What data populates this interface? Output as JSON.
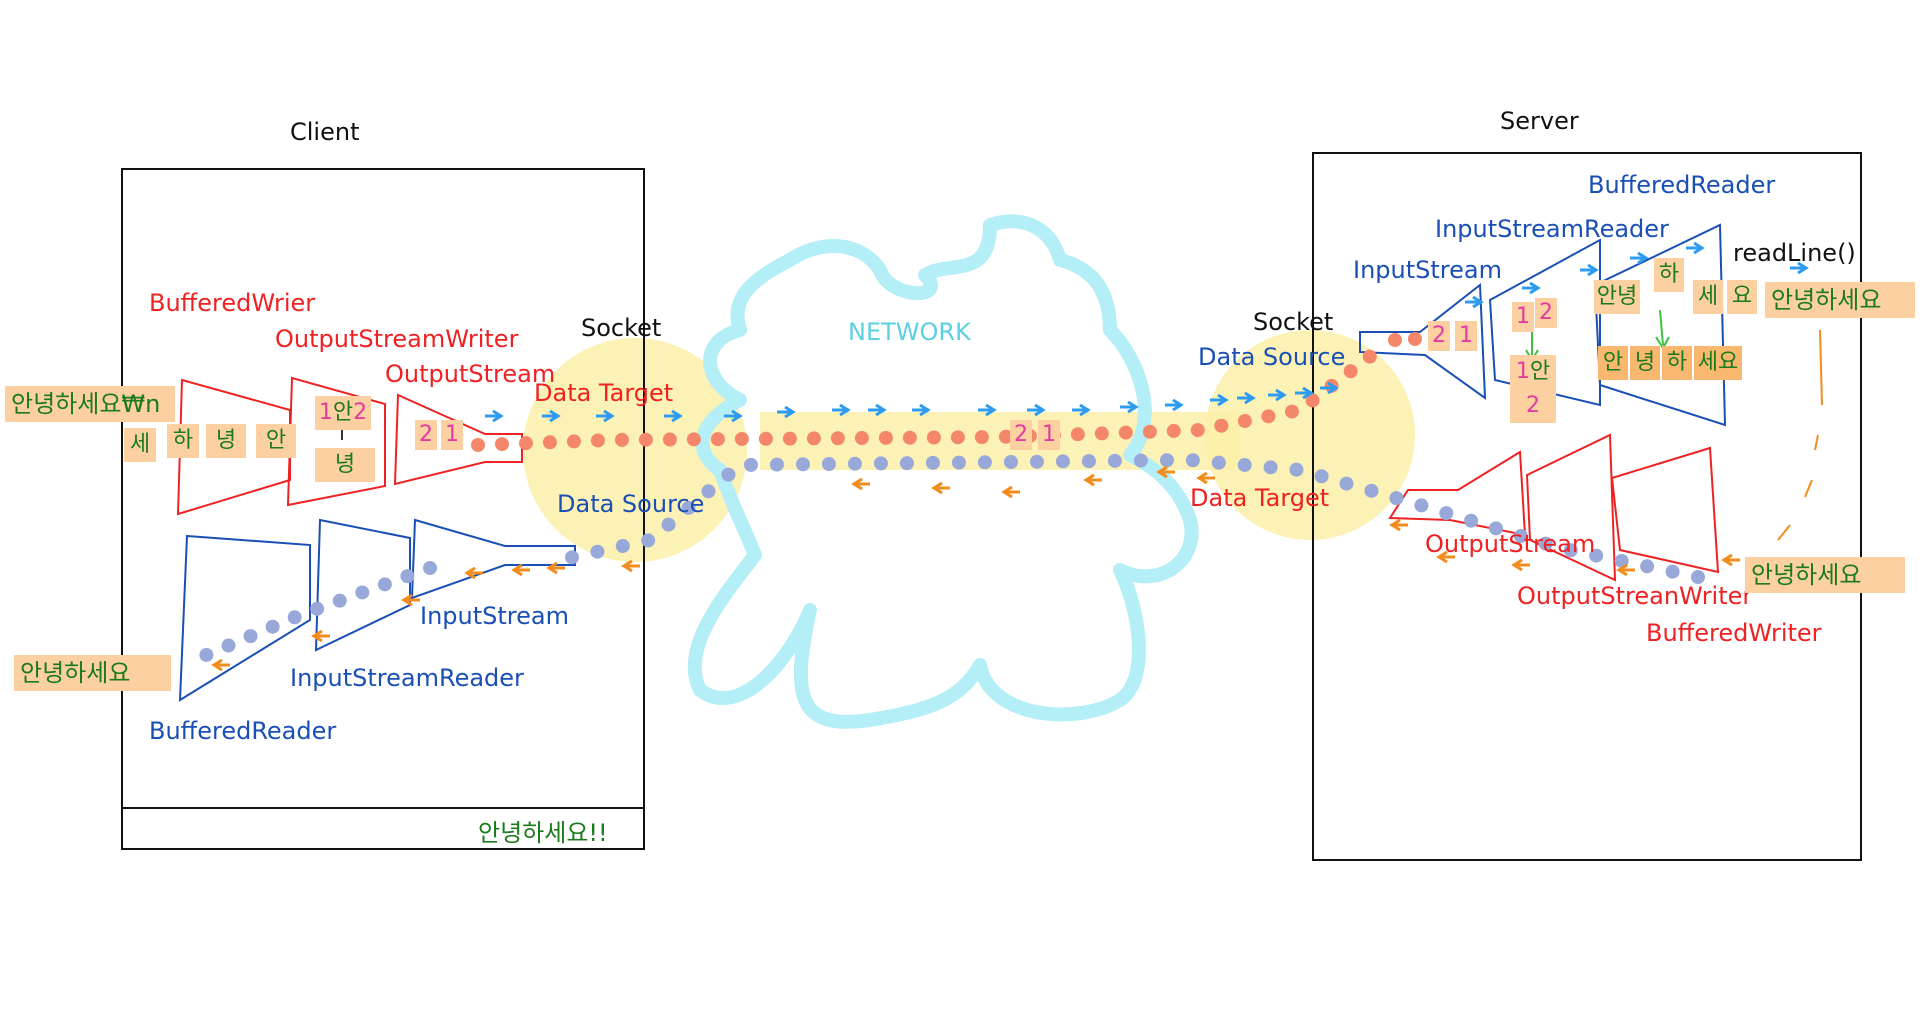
{
  "client": {
    "title": "Client",
    "buffered_writer": "BufferedWrier",
    "output_stream_writer": "OutputStreamWriter",
    "output_stream": "OutputStream",
    "socket": "Socket",
    "data_target": "Data Target",
    "data_source": "Data Source",
    "input_stream": "InputStream",
    "input_stream_reader": "InputStreamReader",
    "buffered_reader": "BufferedReader",
    "input_chip": "안녕하세요₩n",
    "char_se": "세",
    "char_ha": "하",
    "char_nyeong": "녕",
    "char_an": "안",
    "stack_an": "안",
    "stack_nyeong": "녕",
    "num_1": "1",
    "num_2": "2",
    "output_chip": "안녕하세요",
    "status_text": "안녕하세요!!"
  },
  "network": {
    "label": "NETWORK",
    "num_2": "2",
    "num_1": "1"
  },
  "server": {
    "title": "Server",
    "socket": "Socket",
    "data_source": "Data Source",
    "data_target": "Data Target",
    "input_stream": "InputStream",
    "input_stream_reader": "InputStreamReader",
    "buffered_reader": "BufferedReader",
    "read_line": "readLine()",
    "output_stream": "OutputStream",
    "output_stream_writer": "OutputStreanWriter",
    "buffered_writer": "BufferedWriter",
    "num_2": "2",
    "num_1": "1",
    "isr_num_1": "1",
    "isr_num_2": "2",
    "stack_an": "안",
    "stack_num_1": "1",
    "stack_num_2": "2",
    "char_annyeong": "안녕",
    "char_ha": "하",
    "char_se": "세",
    "char_yo": "요",
    "row_an": "안",
    "row_nyeong": "녕",
    "row_ha": "하",
    "row_seyo": "세요",
    "result_chip": "안녕하세요",
    "reply_chip": "안녕하세요"
  },
  "colors": {
    "red_dots": "#f4876a",
    "blue_dots": "#98a8d8",
    "arrow_blue": "#2d9cf0",
    "arrow_orange": "#f28c1c",
    "highlight": "#fdf0a8",
    "cloud": "#b4eef6"
  }
}
